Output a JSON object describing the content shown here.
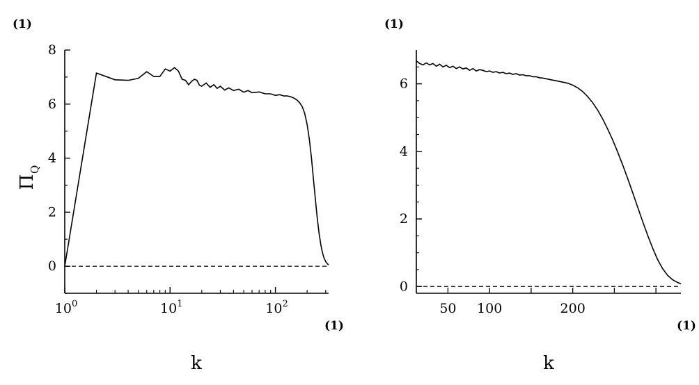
{
  "chart_data": [
    {
      "type": "line",
      "xscale": "log",
      "xlim": [
        1,
        320
      ],
      "ylim": [
        -1,
        8
      ],
      "grid": false,
      "xlabel": "k",
      "ylabel_main": "Π",
      "ylabel_sub": "Q",
      "y_unit_label": "(1)",
      "x_unit_label": "(1)",
      "xticks": [
        {
          "value": 1,
          "base": "10",
          "exp": "0"
        },
        {
          "value": 10,
          "base": "10",
          "exp": "1"
        },
        {
          "value": 100,
          "base": "10",
          "exp": "2"
        }
      ],
      "yticks": [
        0,
        2,
        4,
        6,
        8
      ],
      "ytick_labels": [
        "0",
        "2",
        "4",
        "6",
        "8"
      ],
      "reference_line": {
        "y": 0,
        "style": "dashed"
      },
      "series": [
        {
          "x": [
            1,
            2,
            3,
            4,
            5,
            6,
            7,
            8,
            9,
            10,
            11,
            12,
            13,
            14,
            15,
            16,
            17,
            18,
            19,
            20,
            22,
            24,
            26,
            28,
            30,
            33,
            36,
            40,
            45,
            50,
            55,
            60,
            70,
            80,
            90,
            100,
            110,
            120,
            130,
            140,
            150,
            160,
            170,
            180,
            190,
            200,
            210,
            220,
            230,
            240,
            250,
            260,
            270,
            280,
            290,
            300,
            310,
            320
          ],
          "y": [
            0,
            7.15,
            6.9,
            6.88,
            6.95,
            7.2,
            7.02,
            7.02,
            7.3,
            7.22,
            7.35,
            7.22,
            6.92,
            6.88,
            6.72,
            6.84,
            6.92,
            6.88,
            6.7,
            6.66,
            6.78,
            6.62,
            6.72,
            6.58,
            6.66,
            6.52,
            6.6,
            6.5,
            6.55,
            6.44,
            6.5,
            6.42,
            6.45,
            6.38,
            6.38,
            6.32,
            6.35,
            6.3,
            6.3,
            6.27,
            6.22,
            6.15,
            6.05,
            5.9,
            5.65,
            5.25,
            4.7,
            4.0,
            3.2,
            2.45,
            1.75,
            1.2,
            0.8,
            0.5,
            0.3,
            0.17,
            0.1,
            0.05
          ]
        }
      ]
    },
    {
      "type": "line",
      "xlim": [
        12,
        330
      ],
      "ylim": [
        -0.2,
        7
      ],
      "grid": false,
      "xlabel": "k",
      "y_unit_label": "(1)",
      "x_unit_label": "(1)",
      "xticks": [
        {
          "value": 50,
          "label": "50"
        },
        {
          "value": 100,
          "label": "100"
        },
        {
          "value": 200,
          "label": "200"
        }
      ],
      "xtick_positions_data": [
        50,
        100,
        150,
        200,
        250,
        300
      ],
      "yticks": [
        0,
        2,
        4,
        6
      ],
      "ytick_labels": [
        "0",
        "2",
        "4",
        "6"
      ],
      "reference_line": {
        "y": 0,
        "style": "dashed"
      },
      "series": [
        {
          "x": [
            12,
            16,
            20,
            24,
            28,
            32,
            36,
            40,
            44,
            48,
            52,
            56,
            60,
            64,
            68,
            72,
            76,
            80,
            84,
            88,
            92,
            96,
            100,
            104,
            108,
            112,
            116,
            120,
            124,
            128,
            132,
            136,
            140,
            144,
            148,
            152,
            156,
            160,
            164,
            168,
            172,
            176,
            180,
            184,
            188,
            192,
            196,
            200,
            206,
            212,
            218,
            224,
            230,
            236,
            242,
            248,
            254,
            260,
            266,
            272,
            278,
            284,
            290,
            296,
            302,
            308,
            314,
            320,
            326,
            330
          ],
          "y": [
            6.68,
            6.6,
            6.56,
            6.62,
            6.56,
            6.6,
            6.52,
            6.58,
            6.5,
            6.55,
            6.48,
            6.52,
            6.45,
            6.5,
            6.44,
            6.47,
            6.4,
            6.45,
            6.38,
            6.42,
            6.4,
            6.36,
            6.38,
            6.34,
            6.36,
            6.32,
            6.34,
            6.3,
            6.32,
            6.28,
            6.3,
            6.26,
            6.27,
            6.24,
            6.24,
            6.21,
            6.21,
            6.18,
            6.17,
            6.15,
            6.13,
            6.11,
            6.09,
            6.07,
            6.05,
            6.03,
            6.0,
            5.96,
            5.88,
            5.77,
            5.62,
            5.44,
            5.22,
            4.96,
            4.66,
            4.34,
            3.98,
            3.6,
            3.2,
            2.78,
            2.35,
            1.93,
            1.52,
            1.14,
            0.8,
            0.53,
            0.33,
            0.2,
            0.12,
            0.08
          ]
        }
      ]
    }
  ]
}
